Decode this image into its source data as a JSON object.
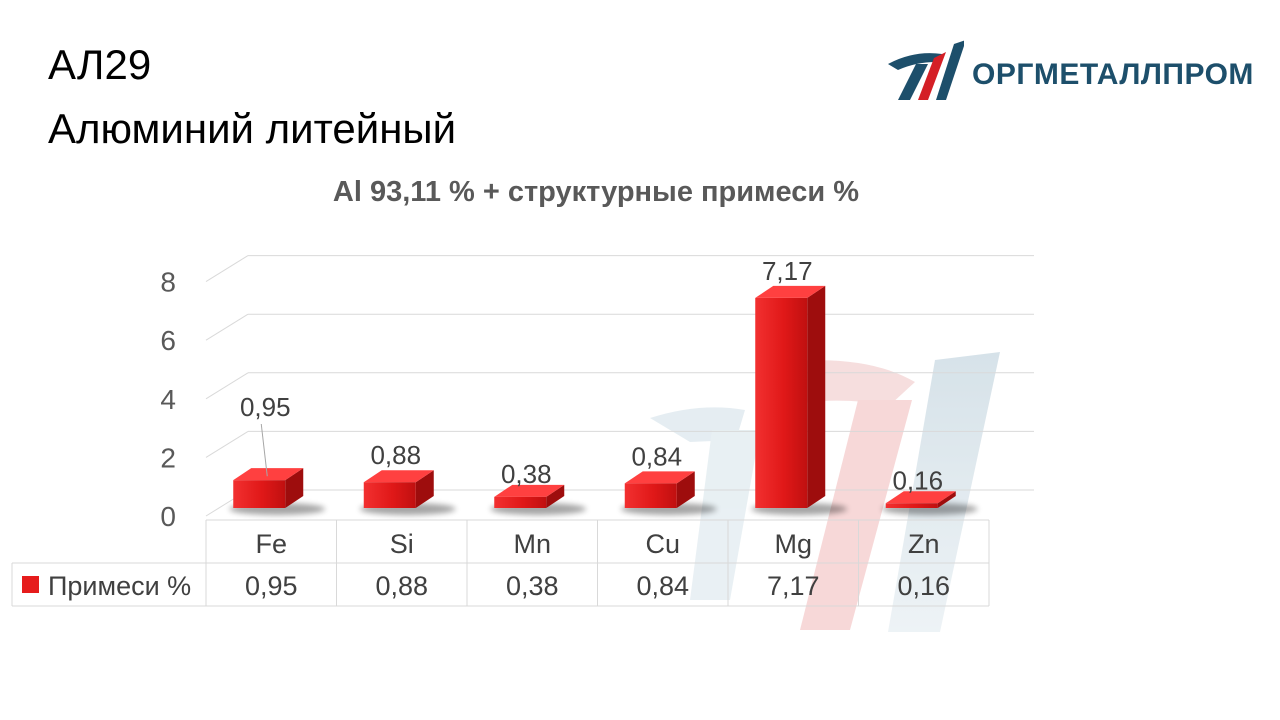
{
  "header": {
    "title": "АЛ29",
    "subtitle": "Алюминий литейный"
  },
  "logo": {
    "text": "ОРГМЕТАЛЛПРОМ"
  },
  "colors": {
    "bar_front": "#e61c1c",
    "bar_side": "#9e0d0d",
    "bar_top": "#ff4040",
    "logo_blue": "#1d4f6b",
    "logo_red": "#d41f26"
  },
  "chart_data": {
    "type": "bar",
    "title": "Al 93,11 % + структурные примеси %",
    "categories": [
      "Fe",
      "Si",
      "Mn",
      "Cu",
      "Mg",
      "Zn"
    ],
    "series": [
      {
        "name": "Примеси %",
        "values": [
          0.95,
          0.88,
          0.38,
          0.84,
          7.17,
          0.16
        ],
        "labels": [
          "0,95",
          "0,88",
          "0,38",
          "0,84",
          "7,17",
          "0,16"
        ]
      }
    ],
    "y_ticks": [
      "0",
      "2",
      "4",
      "6",
      "8"
    ],
    "ylim": [
      0,
      8
    ],
    "grid": true,
    "legend": "data-table"
  }
}
